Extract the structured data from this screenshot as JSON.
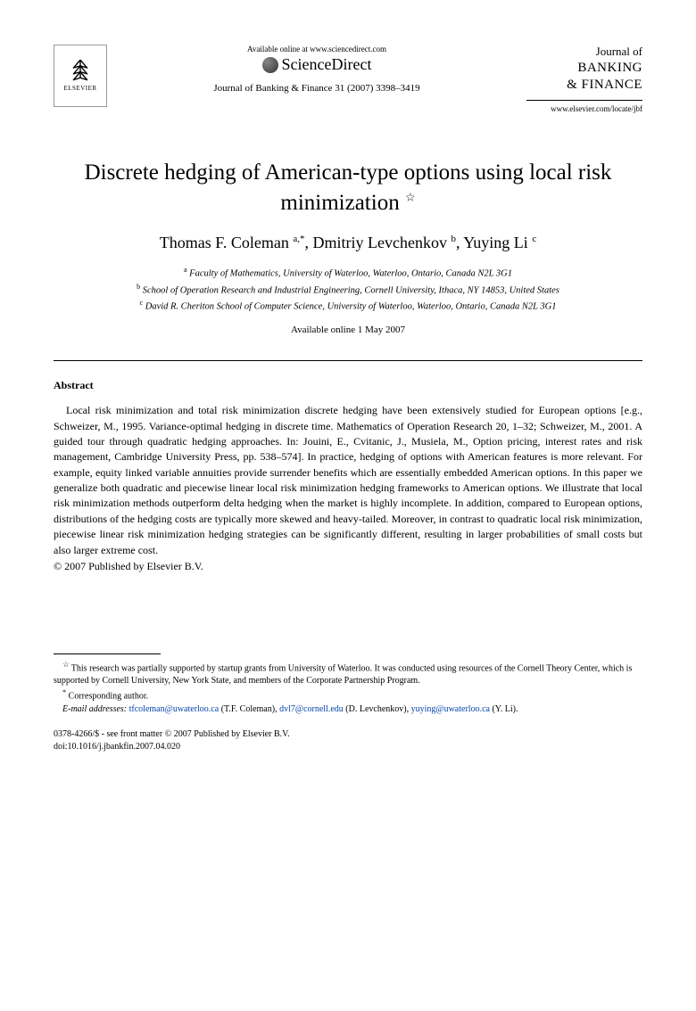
{
  "header": {
    "elsevier_label": "ELSEVIER",
    "available_online": "Available online at www.sciencedirect.com",
    "sciencedirect": "ScienceDirect",
    "journal_ref": "Journal of Banking & Finance 31 (2007) 3398–3419",
    "journal_title_line1": "Journal of",
    "journal_title_line2": "BANKING",
    "journal_title_line3": "& FINANCE",
    "journal_url": "www.elsevier.com/locate/jbf"
  },
  "title": "Discrete hedging of American-type options using local risk minimization",
  "title_note_symbol": "☆",
  "authors": [
    {
      "name": "Thomas F. Coleman",
      "marks": "a,*"
    },
    {
      "name": "Dmitriy Levchenkov",
      "marks": "b"
    },
    {
      "name": "Yuying Li",
      "marks": "c"
    }
  ],
  "affiliations": [
    {
      "mark": "a",
      "text": "Faculty of Mathematics, University of Waterloo, Waterloo, Ontario, Canada N2L 3G1"
    },
    {
      "mark": "b",
      "text": "School of Operation Research and Industrial Engineering, Cornell University, Ithaca, NY 14853, United States"
    },
    {
      "mark": "c",
      "text": "David R. Cheriton School of Computer Science, University of Waterloo, Waterloo, Ontario, Canada N2L 3G1"
    }
  ],
  "available_date": "Available online 1 May 2007",
  "abstract_heading": "Abstract",
  "abstract_text": "Local risk minimization and total risk minimization discrete hedging have been extensively studied for European options [e.g., Schweizer, M., 1995. Variance-optimal hedging in discrete time. Mathematics of Operation Research 20, 1–32; Schweizer, M., 2001. A guided tour through quadratic hedging approaches. In: Jouini, E., Cvitanic, J., Musiela, M., Option pricing, interest rates and risk management, Cambridge University Press, pp. 538–574]. In practice, hedging of options with American features is more relevant. For example, equity linked variable annuities provide surrender benefits which are essentially embedded American options. In this paper we generalize both quadratic and piecewise linear local risk minimization hedging frameworks to American options. We illustrate that local risk minimization methods outperform delta hedging when the market is highly incomplete. In addition, compared to European options, distributions of the hedging costs are typically more skewed and heavy-tailed. Moreover, in contrast to quadratic local risk minimization, piecewise linear risk minimization hedging strategies can be significantly different, resulting in larger probabilities of small costs but also larger extreme cost.",
  "copyright": "© 2007 Published by Elsevier B.V.",
  "footnotes": {
    "funding_mark": "☆",
    "funding": "This research was partially supported by startup grants from University of Waterloo. It was conducted using resources of the Cornell Theory Center, which is supported by Cornell University, New York State, and members of the Corporate Partnership Program.",
    "corresponding_mark": "*",
    "corresponding": "Corresponding author.",
    "email_label": "E-mail addresses:",
    "emails": [
      {
        "addr": "tfcoleman@uwaterloo.ca",
        "who": "(T.F. Coleman)"
      },
      {
        "addr": "dvl7@cornell.edu",
        "who": "(D. Levchenkov)"
      },
      {
        "addr": "yuying@uwaterloo.ca",
        "who": "(Y. Li)"
      }
    ]
  },
  "bottom": {
    "issn_line": "0378-4266/$ - see front matter © 2007 Published by Elsevier B.V.",
    "doi": "doi:10.1016/j.jbankfin.2007.04.020"
  },
  "colors": {
    "text": "#000000",
    "link": "#0645ad",
    "background": "#ffffff"
  }
}
